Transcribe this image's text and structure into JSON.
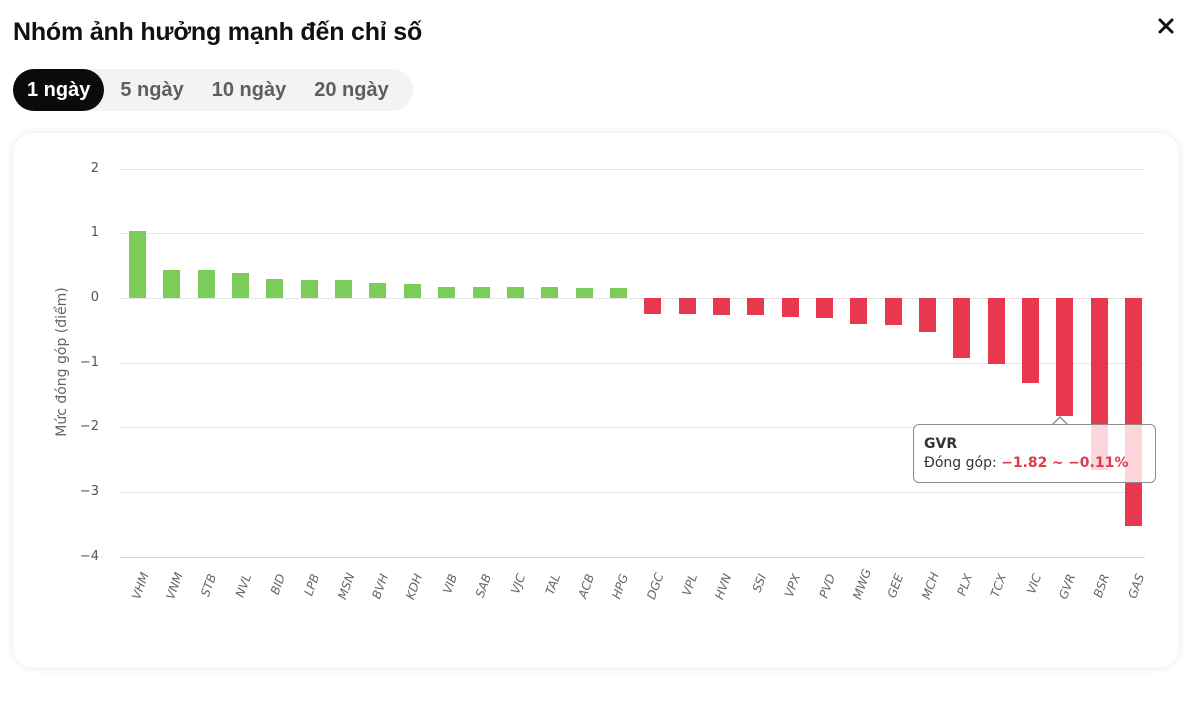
{
  "header": {
    "title": "Nhóm ảnh hưởng mạnh đến chỉ số",
    "close_icon": "close-icon"
  },
  "tabs": [
    {
      "label": "1 ngày",
      "active": true
    },
    {
      "label": "5 ngày",
      "active": false
    },
    {
      "label": "10 ngày",
      "active": false
    },
    {
      "label": "20 ngày",
      "active": false
    }
  ],
  "colors": {
    "positive": "#7ccc5a",
    "negative": "#e8384f",
    "tooltip_value": "#e0394c"
  },
  "tooltip": {
    "title": "GVR",
    "label": "Đóng góp:",
    "value": "−1.82",
    "separator": "~",
    "percent": "−0.11%"
  },
  "chart_data": {
    "type": "bar",
    "title": "Nhóm ảnh hưởng mạnh đến chỉ số",
    "xlabel": "",
    "ylabel": "Mức đóng góp (điểm)",
    "ylim": [
      -4,
      2
    ],
    "yticks": [
      2,
      1,
      0,
      -1,
      -2,
      -3,
      -4
    ],
    "ytick_labels": [
      "2",
      "1",
      "0",
      "−1",
      "−2",
      "−3",
      "−4"
    ],
    "grid": true,
    "legend": null,
    "categories": [
      "VHM",
      "VNM",
      "STB",
      "NVL",
      "BID",
      "LPB",
      "MSN",
      "BVH",
      "KDH",
      "VIB",
      "SAB",
      "VJC",
      "TAL",
      "ACB",
      "HPG",
      "DGC",
      "VPL",
      "HVN",
      "SSI",
      "VPX",
      "PVD",
      "MWG",
      "GEE",
      "MCH",
      "PLX",
      "TCX",
      "VIC",
      "GVR",
      "BSR",
      "GAS"
    ],
    "values": [
      1.03,
      0.44,
      0.44,
      0.38,
      0.3,
      0.28,
      0.28,
      0.23,
      0.21,
      0.17,
      0.17,
      0.17,
      0.17,
      0.15,
      0.15,
      -0.24,
      -0.25,
      -0.27,
      -0.27,
      -0.3,
      -0.31,
      -0.4,
      -0.42,
      -0.52,
      -0.93,
      -1.02,
      -1.31,
      -1.82,
      -2.66,
      -3.53
    ],
    "annotations": [
      {
        "category": "GVR",
        "text": "Đóng góp: −1.82 ~ −0.11%"
      }
    ]
  }
}
